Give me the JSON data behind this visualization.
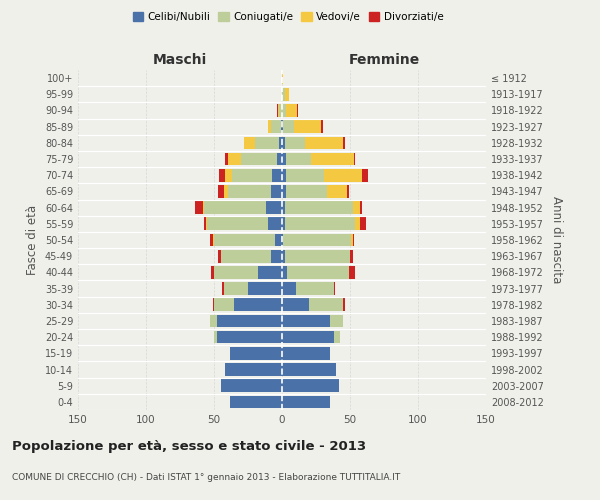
{
  "age_groups": [
    "0-4",
    "5-9",
    "10-14",
    "15-19",
    "20-24",
    "25-29",
    "30-34",
    "35-39",
    "40-44",
    "45-49",
    "50-54",
    "55-59",
    "60-64",
    "65-69",
    "70-74",
    "75-79",
    "80-84",
    "85-89",
    "90-94",
    "95-99",
    "100+"
  ],
  "birth_years": [
    "2008-2012",
    "2003-2007",
    "1998-2002",
    "1993-1997",
    "1988-1992",
    "1983-1987",
    "1978-1982",
    "1973-1977",
    "1968-1972",
    "1963-1967",
    "1958-1962",
    "1953-1957",
    "1948-1952",
    "1943-1947",
    "1938-1942",
    "1933-1937",
    "1928-1932",
    "1923-1927",
    "1918-1922",
    "1913-1917",
    "≤ 1912"
  ],
  "colors": {
    "celibe": "#4a72a8",
    "coniugato": "#bece9a",
    "vedovo": "#f5c842",
    "divorziato": "#cc2222"
  },
  "maschi": {
    "celibe": [
      38,
      45,
      42,
      38,
      48,
      48,
      35,
      25,
      18,
      8,
      5,
      10,
      12,
      8,
      7,
      4,
      2,
      1,
      0,
      0,
      0
    ],
    "coniugato": [
      0,
      0,
      0,
      0,
      2,
      5,
      15,
      18,
      32,
      37,
      45,
      45,
      45,
      32,
      30,
      26,
      18,
      7,
      2,
      0,
      0
    ],
    "vedovo": [
      0,
      0,
      0,
      0,
      0,
      0,
      0,
      0,
      0,
      0,
      1,
      1,
      1,
      3,
      5,
      10,
      8,
      2,
      1,
      0,
      0
    ],
    "divorziato": [
      0,
      0,
      0,
      0,
      0,
      0,
      1,
      1,
      2,
      2,
      2,
      1,
      6,
      4,
      4,
      2,
      0,
      0,
      1,
      0,
      0
    ]
  },
  "femmine": {
    "nubile": [
      35,
      42,
      40,
      35,
      38,
      35,
      20,
      10,
      4,
      2,
      1,
      2,
      2,
      3,
      3,
      3,
      2,
      1,
      0,
      0,
      0
    ],
    "coniugata": [
      0,
      0,
      0,
      0,
      5,
      10,
      25,
      28,
      45,
      48,
      50,
      52,
      50,
      30,
      28,
      18,
      15,
      8,
      3,
      2,
      0
    ],
    "vedova": [
      0,
      0,
      0,
      0,
      0,
      0,
      0,
      0,
      0,
      0,
      1,
      3,
      5,
      15,
      28,
      32,
      28,
      20,
      8,
      3,
      1
    ],
    "divorziata": [
      0,
      0,
      0,
      0,
      0,
      0,
      1,
      1,
      5,
      2,
      1,
      5,
      2,
      1,
      4,
      1,
      1,
      1,
      1,
      0,
      0
    ]
  },
  "xlim": 150,
  "title": "Popolazione per età, sesso e stato civile - 2013",
  "subtitle": "COMUNE DI CRECCHIO (CH) - Dati ISTAT 1° gennaio 2013 - Elaborazione TUTTITALIA.IT",
  "ylabel_left": "Fasce di età",
  "ylabel_right": "Anni di nascita",
  "xlabel_maschi": "Maschi",
  "xlabel_femmine": "Femmine",
  "legend_labels": [
    "Celibi/Nubili",
    "Coniugati/e",
    "Vedovi/e",
    "Divorziati/e"
  ],
  "bg_color": "#f0f0eb",
  "plot_bg": "#f0f0eb",
  "grid_color": "#cccccc",
  "text_color": "#555555",
  "title_color": "#222222"
}
